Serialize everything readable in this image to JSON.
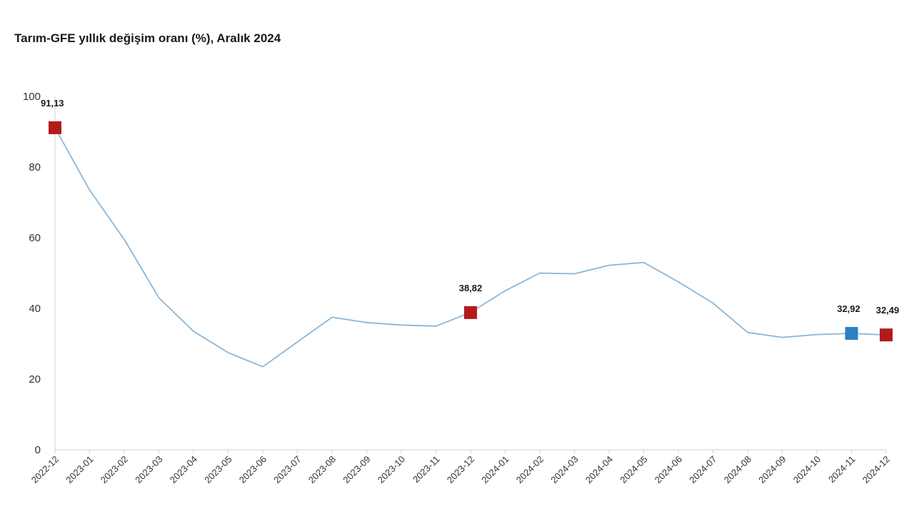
{
  "chart_data": {
    "type": "line",
    "title": "Tarım-GFE yıllık değişim oranı (%), Aralık 2024",
    "xlabel": "",
    "ylabel": "",
    "ylim": [
      0,
      100
    ],
    "yticks": [
      0,
      20,
      40,
      60,
      80,
      100
    ],
    "grid": false,
    "categories": [
      "2022-12",
      "2023-01",
      "2023-02",
      "2023-03",
      "2023-04",
      "2023-05",
      "2023-06",
      "2023-07",
      "2023-08",
      "2023-09",
      "2023-10",
      "2023-11",
      "2023-12",
      "2024-01",
      "2024-02",
      "2024-03",
      "2024-04",
      "2024-05",
      "2024-06",
      "2024-07",
      "2024-08",
      "2024-09",
      "2024-10",
      "2024-11",
      "2024-12"
    ],
    "series": [
      {
        "values": [
          91.13,
          73.5,
          59.5,
          43.0,
          33.5,
          27.5,
          23.5,
          30.5,
          37.5,
          36.0,
          35.3,
          35.0,
          38.82,
          45.0,
          50.0,
          49.8,
          52.2,
          53.0,
          47.5,
          41.5,
          33.2,
          31.8,
          32.6,
          32.92,
          32.49
        ],
        "color": "#8ab6d6"
      }
    ],
    "markers": [
      {
        "index": 0,
        "label": "91,13",
        "color": "#b31b1b"
      },
      {
        "index": 12,
        "label": "38,82",
        "color": "#b31b1b"
      },
      {
        "index": 23,
        "label": "32,92",
        "color": "#2e7fc1"
      },
      {
        "index": 24,
        "label": "32,49",
        "color": "#b31b1b"
      }
    ]
  }
}
